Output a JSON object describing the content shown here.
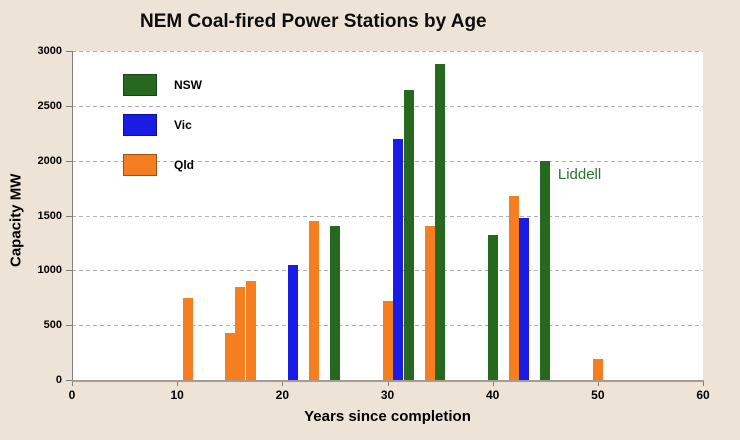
{
  "colors": {
    "background": "#ede4d7",
    "plot_background": "#ffffff",
    "gridline": "#b0b0b0",
    "axis_line": "#7f7f7f",
    "annotation_green": "#2a7330"
  },
  "chart_data": {
    "type": "bar",
    "title": "NEM Coal-fired Power Stations by Age",
    "xlabel": "Years since completion",
    "ylabel": "Capacity MW",
    "xlim": [
      0,
      60
    ],
    "ylim": [
      0,
      3000
    ],
    "x_ticks": [
      0,
      10,
      20,
      30,
      40,
      50,
      60
    ],
    "y_ticks": [
      0,
      500,
      1000,
      1500,
      2000,
      2500,
      3000
    ],
    "grid": "horizontal-dashed",
    "legend_position": "top-left-inside",
    "legend": [
      "NSW",
      "Vic",
      "Qld"
    ],
    "series_colors": {
      "NSW": "#26691e",
      "Vic": "#1b1be6",
      "Qld": "#f57e20"
    },
    "annotations": [
      {
        "text": "Liddell",
        "x": 46.2,
        "y": 1955,
        "color": "#2a7330"
      }
    ],
    "points": [
      {
        "series": "Qld",
        "x": 11,
        "y": 750
      },
      {
        "series": "Qld",
        "x": 15,
        "y": 430
      },
      {
        "series": "Qld",
        "x": 16,
        "y": 850
      },
      {
        "series": "Qld",
        "x": 17,
        "y": 900
      },
      {
        "series": "Vic",
        "x": 21,
        "y": 1050
      },
      {
        "series": "Qld",
        "x": 23,
        "y": 1450
      },
      {
        "series": "NSW",
        "x": 25,
        "y": 1400
      },
      {
        "series": "Qld",
        "x": 30,
        "y": 720
      },
      {
        "series": "Vic",
        "x": 31,
        "y": 2200
      },
      {
        "series": "NSW",
        "x": 32,
        "y": 2640
      },
      {
        "series": "Qld",
        "x": 34,
        "y": 1400
      },
      {
        "series": "NSW",
        "x": 35,
        "y": 2880
      },
      {
        "series": "NSW",
        "x": 40,
        "y": 1320
      },
      {
        "series": "Qld",
        "x": 42,
        "y": 1680
      },
      {
        "series": "Vic",
        "x": 43,
        "y": 1480
      },
      {
        "series": "NSW",
        "x": 45,
        "y": 2000
      },
      {
        "series": "Qld",
        "x": 50,
        "y": 190
      }
    ]
  }
}
